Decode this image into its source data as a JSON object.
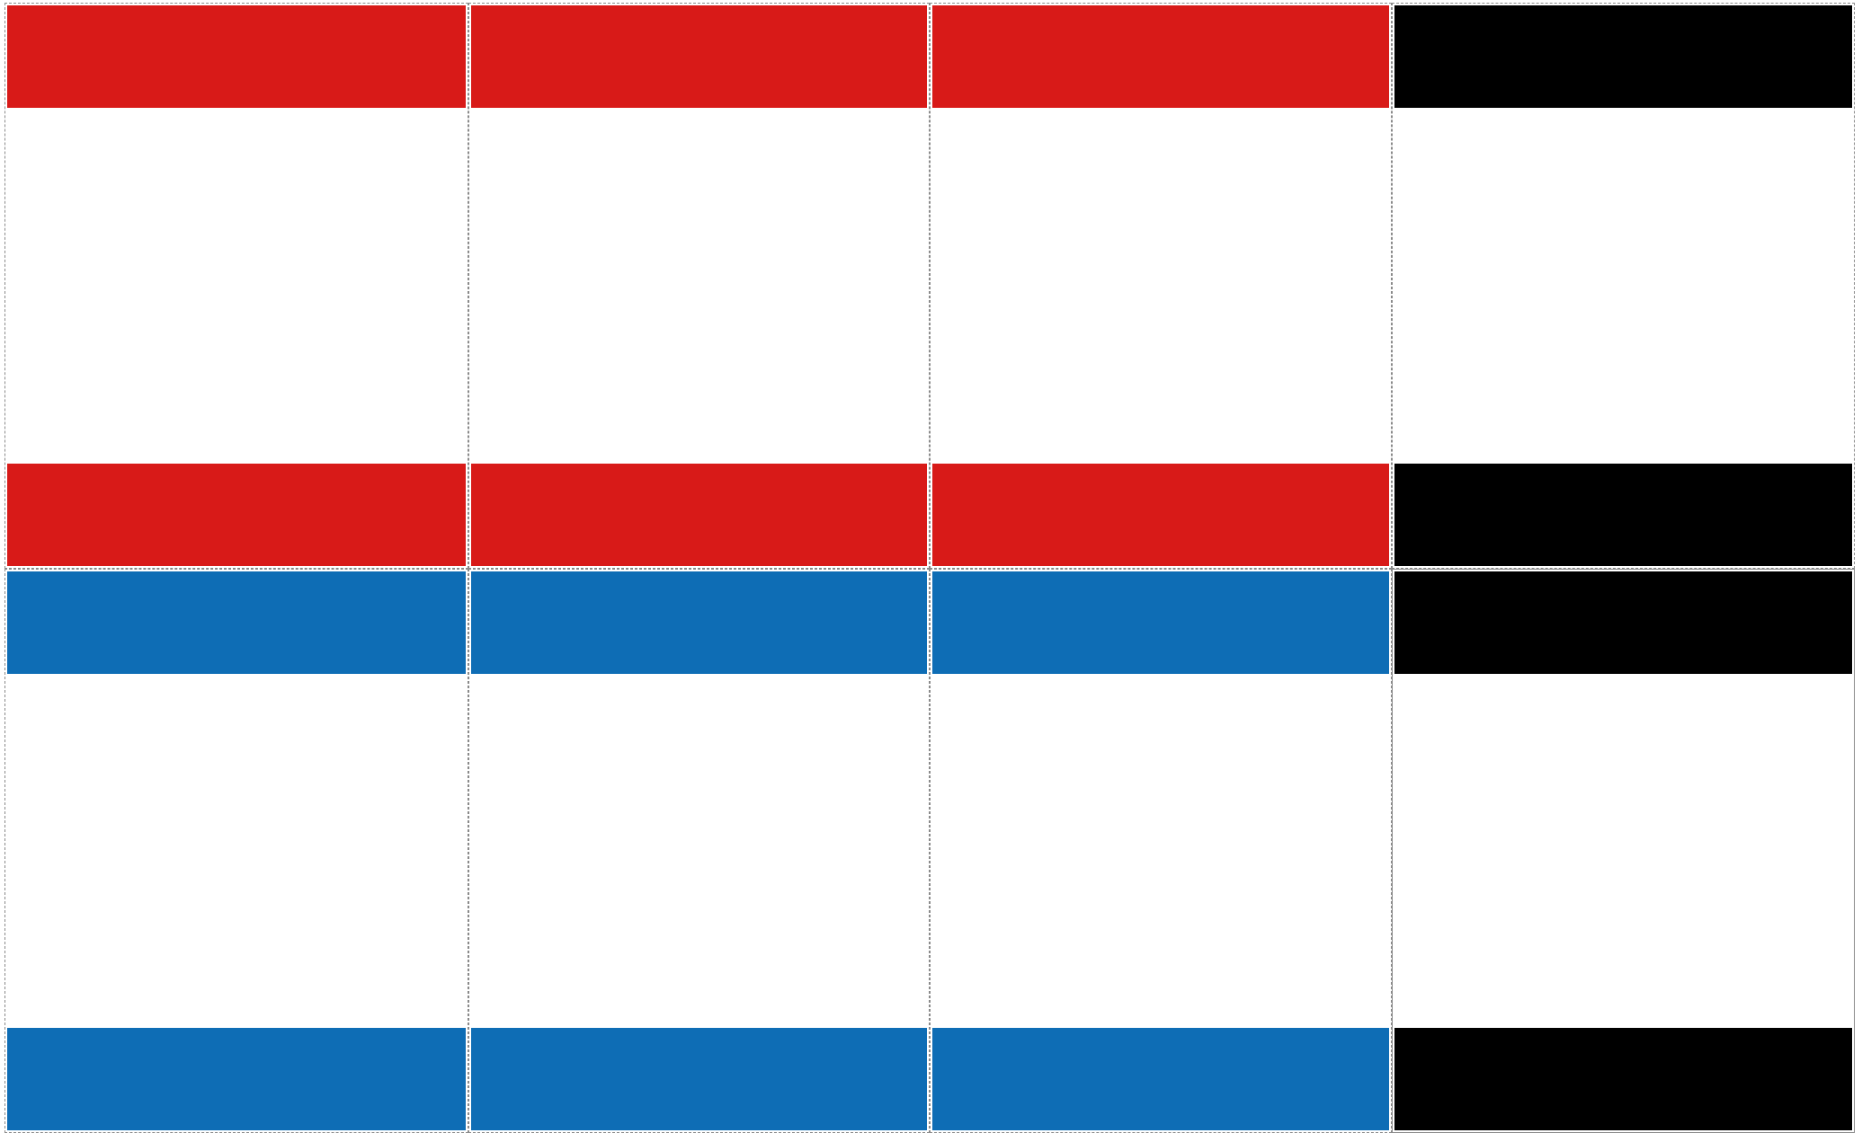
{
  "colors": {
    "red": "#d81a18",
    "blue": "#0e6db5",
    "black": "#000000",
    "border": "#8a8a8a",
    "background": "#ffffff"
  },
  "grid": {
    "rows": [
      {
        "name": "row-1",
        "cells": [
          "red",
          "red",
          "red",
          "black"
        ]
      },
      {
        "name": "row-2",
        "cells": [
          "blue",
          "blue",
          "blue",
          "black"
        ]
      }
    ]
  }
}
